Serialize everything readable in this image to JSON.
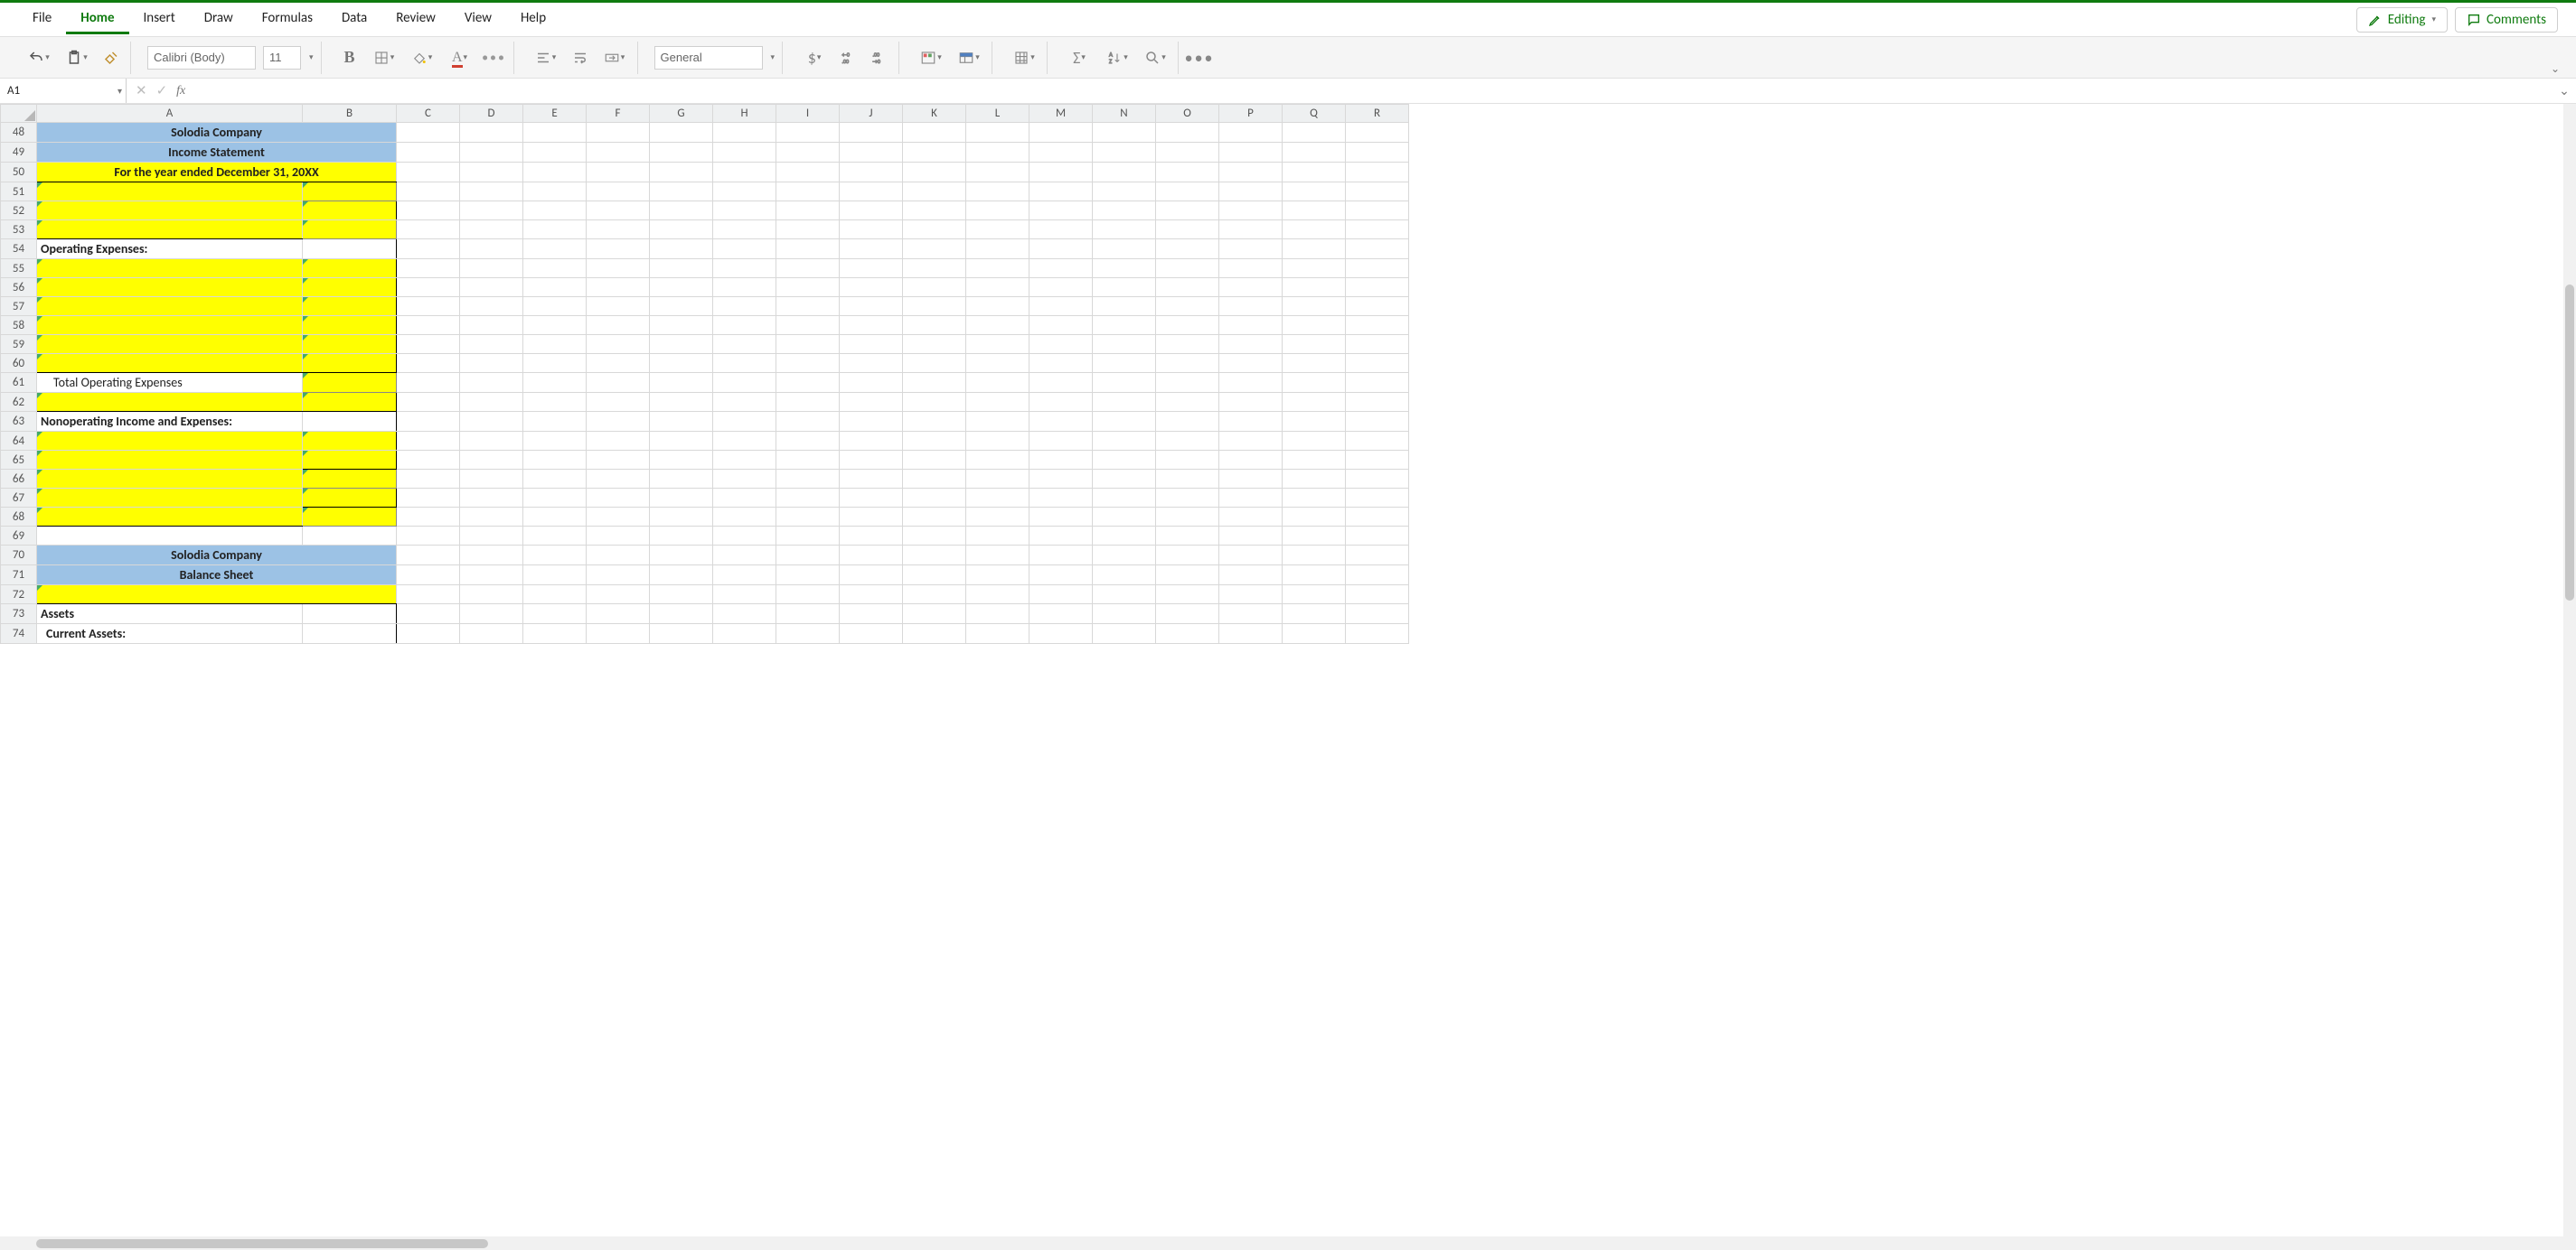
{
  "menu": {
    "tabs": [
      "File",
      "Home",
      "Insert",
      "Draw",
      "Formulas",
      "Data",
      "Review",
      "View",
      "Help"
    ],
    "active": "Home",
    "editing": "Editing",
    "comments": "Comments"
  },
  "ribbon": {
    "font_name": "Calibri (Body)",
    "font_size": "11",
    "number_format": "General"
  },
  "formula": {
    "name_box": "A1",
    "fx": "fx",
    "value": ""
  },
  "columns": [
    "A",
    "B",
    "C",
    "D",
    "E",
    "F",
    "G",
    "H",
    "I",
    "J",
    "K",
    "L",
    "M",
    "N",
    "O",
    "P",
    "Q",
    "R"
  ],
  "first_row": 48,
  "last_row": 74,
  "rows": {
    "48": {
      "A": {
        "text": "Solodia Company",
        "cls": "blue bold center bt bl",
        "merge": 2
      },
      "B": {
        "hidden": true,
        "cls": "blue bt br"
      }
    },
    "49": {
      "A": {
        "text": "Income Statement",
        "cls": "blue bold center bl",
        "merge": 2
      },
      "B": {
        "hidden": true,
        "cls": "blue br"
      }
    },
    "50": {
      "A": {
        "text": "For the year ended December 31, 20XX",
        "cls": "yellow bold center bl bb",
        "merge": 2
      },
      "B": {
        "hidden": true,
        "cls": "yellow br bb"
      }
    },
    "51": {
      "A": {
        "text": "",
        "cls": "yellow bl",
        "tri": true
      },
      "B": {
        "text": "",
        "cls": "yellow br bb dborder",
        "tri": true
      }
    },
    "52": {
      "A": {
        "text": "",
        "cls": "yellow bl",
        "tri": true
      },
      "B": {
        "text": "",
        "cls": "yellow br",
        "tri": true
      }
    },
    "53": {
      "A": {
        "text": "",
        "cls": "yellow bl bb",
        "tri": true
      },
      "B": {
        "text": "",
        "cls": "yellow br bb bt dborder",
        "tri": true
      }
    },
    "54": {
      "A": {
        "text": "Operating Expenses:",
        "cls": "bold bl"
      },
      "B": {
        "text": "",
        "cls": "br"
      }
    },
    "55": {
      "A": {
        "text": "",
        "cls": "yellow bl",
        "tri": true
      },
      "B": {
        "text": "",
        "cls": "yellow br",
        "tri": true
      }
    },
    "56": {
      "A": {
        "text": "",
        "cls": "yellow bl",
        "tri": true
      },
      "B": {
        "text": "",
        "cls": "yellow br",
        "tri": true
      }
    },
    "57": {
      "A": {
        "text": "",
        "cls": "yellow bl",
        "tri": true
      },
      "B": {
        "text": "",
        "cls": "yellow br",
        "tri": true
      }
    },
    "58": {
      "A": {
        "text": "",
        "cls": "yellow bl",
        "tri": true
      },
      "B": {
        "text": "",
        "cls": "yellow br",
        "tri": true
      }
    },
    "59": {
      "A": {
        "text": "",
        "cls": "yellow bl",
        "tri": true
      },
      "B": {
        "text": "",
        "cls": "yellow br",
        "tri": true
      }
    },
    "60": {
      "A": {
        "text": "",
        "cls": "yellow bl bb",
        "tri": true
      },
      "B": {
        "text": "",
        "cls": "yellow br bb",
        "tri": true
      }
    },
    "61": {
      "A": {
        "text": "Total Operating Expenses",
        "cls": "indent bl"
      },
      "B": {
        "text": "",
        "cls": "yellow br bb dborder",
        "tri": true
      }
    },
    "62": {
      "A": {
        "text": "",
        "cls": "yellow bl bb",
        "tri": true
      },
      "B": {
        "text": "",
        "cls": "yellow br bb",
        "tri": true
      }
    },
    "63": {
      "A": {
        "text": "Nonoperating Income and Expenses:",
        "cls": "bold bl"
      },
      "B": {
        "text": "",
        "cls": "br"
      }
    },
    "64": {
      "A": {
        "text": "",
        "cls": "yellow bl",
        "tri": true
      },
      "B": {
        "text": "",
        "cls": "yellow br",
        "tri": true
      }
    },
    "65": {
      "A": {
        "text": "",
        "cls": "yellow bl",
        "tri": true
      },
      "B": {
        "text": "",
        "cls": "yellow br bb",
        "tri": true
      }
    },
    "66": {
      "A": {
        "text": "",
        "cls": "yellow bl",
        "tri": true
      },
      "B": {
        "text": "",
        "cls": "yellow br bb dborder",
        "tri": true
      }
    },
    "67": {
      "A": {
        "text": "",
        "cls": "yellow bl",
        "tri": true
      },
      "B": {
        "text": "",
        "cls": "yellow br bb",
        "tri": true
      }
    },
    "68": {
      "A": {
        "text": "",
        "cls": "yellow bl bb",
        "tri": true
      },
      "B": {
        "text": "",
        "cls": "yellow br bb dborder",
        "tri": true
      }
    },
    "69": {
      "A": {
        "text": "",
        "cls": ""
      },
      "B": {
        "text": "",
        "cls": ""
      }
    },
    "70": {
      "A": {
        "text": "Solodia Company",
        "cls": "blue bold center bt bl",
        "merge": 2
      },
      "B": {
        "hidden": true,
        "cls": "blue bt br"
      }
    },
    "71": {
      "A": {
        "text": "Balance Sheet",
        "cls": "blue bold center bl",
        "merge": 2
      },
      "B": {
        "hidden": true,
        "cls": "blue br"
      }
    },
    "72": {
      "A": {
        "text": "",
        "cls": "yellow bl bb",
        "merge": 2,
        "tri": true
      },
      "B": {
        "hidden": true,
        "cls": "yellow br bb"
      }
    },
    "73": {
      "A": {
        "text": "Assets",
        "cls": "bold bl"
      },
      "B": {
        "text": "",
        "cls": "br"
      }
    },
    "74": {
      "A": {
        "text": "Current Assets:",
        "cls": "bold indent2 bl"
      },
      "B": {
        "text": "",
        "cls": "br"
      }
    }
  },
  "colors": {
    "app_green": "#0f7b0f",
    "header_blue": "#9cc2e5",
    "highlight_yellow": "#ffff00",
    "gridline": "#d8d8d8",
    "col_header_bg": "#eef0f1"
  }
}
